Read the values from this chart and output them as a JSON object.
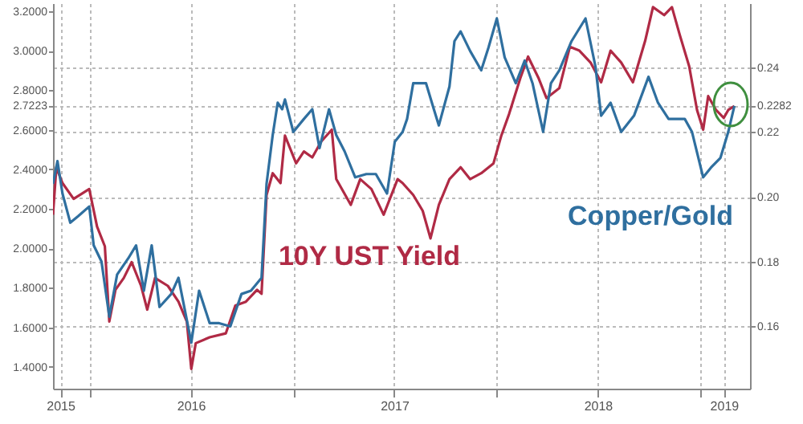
{
  "chart_data": {
    "type": "line",
    "grid": true,
    "xlim": [
      "2015-10-28",
      "2019-03-31"
    ],
    "xticks": [
      {
        "value": "2015-11-10",
        "label": "2015"
      },
      {
        "value": "2016-01-01",
        "label": null
      },
      {
        "value": "2016-07-01",
        "label": "2016"
      },
      {
        "value": "2017-01-01",
        "label": null
      },
      {
        "value": "2017-07-01",
        "label": "2017"
      },
      {
        "value": "2018-01-01",
        "label": null
      },
      {
        "value": "2018-07-01",
        "label": "2018"
      },
      {
        "value": "2019-01-01",
        "label": null
      },
      {
        "value": "2019-02-12",
        "label": "2019"
      }
    ],
    "ylim": [
      1.29,
      3.24
    ],
    "yticks": [
      {
        "value": 1.4,
        "label": "1.4000"
      },
      {
        "value": 1.6,
        "label": "1.6000"
      },
      {
        "value": 1.8,
        "label": "1.8000"
      },
      {
        "value": 2.0,
        "label": "2.0000"
      },
      {
        "value": 2.2,
        "label": "2.2000"
      },
      {
        "value": 2.4,
        "label": "2.4000"
      },
      {
        "value": 2.6,
        "label": "2.6000"
      },
      {
        "value": 2.7223,
        "label": "2.7223"
      },
      {
        "value": 2.8,
        "label": "2.8000"
      },
      {
        "value": 3.0,
        "label": "3.0000"
      },
      {
        "value": 3.2,
        "label": "3.2000"
      }
    ],
    "y2lim": [
      0.1408,
      0.2597
    ],
    "y2ticks": [
      {
        "value": 0.16,
        "label": "0.16"
      },
      {
        "value": 0.18,
        "label": "0.18"
      },
      {
        "value": 0.2,
        "label": "0.20"
      },
      {
        "value": 0.22,
        "label": "0.22"
      },
      {
        "value": 0.2282,
        "label": "0.2282"
      },
      {
        "value": 0.24,
        "label": "0.24"
      }
    ],
    "series": [
      {
        "name": "10Y UST Yield",
        "color": "#b02a45",
        "x": [
          "2015-10-28",
          "2015-11-03",
          "2015-11-14",
          "2015-12-04",
          "2016-01-01",
          "2016-01-15",
          "2016-01-29",
          "2016-02-06",
          "2016-02-17",
          "2016-03-03",
          "2016-03-17",
          "2016-04-03",
          "2016-04-14",
          "2016-04-28",
          "2016-05-21",
          "2016-06-09",
          "2016-06-24",
          "2016-07-02",
          "2016-07-10",
          "2016-08-04",
          "2016-09-02",
          "2016-09-19",
          "2016-10-08",
          "2016-10-28",
          "2016-11-05",
          "2016-11-14",
          "2016-11-25",
          "2016-12-09",
          "2016-12-17",
          "2017-01-06",
          "2017-01-20",
          "2017-02-04",
          "2017-02-20",
          "2017-03-11",
          "2017-03-19",
          "2017-04-14",
          "2017-05-01",
          "2017-05-21",
          "2017-06-12",
          "2017-07-07",
          "2017-07-16",
          "2017-08-04",
          "2017-08-21",
          "2017-09-04",
          "2017-09-19",
          "2017-10-08",
          "2017-10-28",
          "2017-11-14",
          "2017-12-04",
          "2017-12-26",
          "2018-01-09",
          "2018-01-23",
          "2018-02-12",
          "2018-02-26",
          "2018-03-17",
          "2018-03-31",
          "2018-04-23",
          "2018-05-12",
          "2018-05-29",
          "2018-06-18",
          "2018-07-07",
          "2018-07-24",
          "2018-08-12",
          "2018-09-02",
          "2018-09-24",
          "2018-10-08",
          "2018-10-28",
          "2018-11-11",
          "2018-11-25",
          "2018-12-12",
          "2018-12-26",
          "2019-01-06",
          "2019-01-15",
          "2019-01-29",
          "2019-02-12",
          "2019-02-20",
          "2019-03-03"
        ],
        "values": [
          2.17,
          2.41,
          2.33,
          2.25,
          2.3,
          2.11,
          2.01,
          1.63,
          1.79,
          1.85,
          1.93,
          1.81,
          1.69,
          1.85,
          1.81,
          1.73,
          1.63,
          1.39,
          1.52,
          1.55,
          1.57,
          1.71,
          1.73,
          1.79,
          1.77,
          2.27,
          2.38,
          2.33,
          2.57,
          2.43,
          2.49,
          2.46,
          2.54,
          2.6,
          2.35,
          2.22,
          2.35,
          2.3,
          2.17,
          2.35,
          2.33,
          2.27,
          2.19,
          2.05,
          2.22,
          2.35,
          2.41,
          2.35,
          2.38,
          2.43,
          2.57,
          2.68,
          2.86,
          2.97,
          2.86,
          2.76,
          2.81,
          3.02,
          3.0,
          2.94,
          2.84,
          3.0,
          2.94,
          2.84,
          3.05,
          3.22,
          3.18,
          3.22,
          3.08,
          2.92,
          2.7,
          2.6,
          2.77,
          2.7,
          2.66,
          2.7,
          2.72
        ]
      },
      {
        "name": "Copper/Gold",
        "color": "#2f6f9f",
        "axis": "y2",
        "x": [
          "2015-10-28",
          "2015-11-05",
          "2015-11-14",
          "2015-11-28",
          "2015-12-12",
          "2016-01-01",
          "2016-01-09",
          "2016-01-23",
          "2016-02-06",
          "2016-02-20",
          "2016-03-11",
          "2016-03-25",
          "2016-04-08",
          "2016-04-22",
          "2016-05-06",
          "2016-05-27",
          "2016-06-09",
          "2016-07-02",
          "2016-07-16",
          "2016-08-04",
          "2016-08-21",
          "2016-09-10",
          "2016-09-30",
          "2016-10-17",
          "2016-11-05",
          "2016-11-14",
          "2016-11-25",
          "2016-12-04",
          "2016-12-12",
          "2016-12-17",
          "2017-01-01",
          "2017-01-20",
          "2017-02-04",
          "2017-02-17",
          "2017-03-06",
          "2017-03-19",
          "2017-04-03",
          "2017-04-22",
          "2017-05-12",
          "2017-05-29",
          "2017-06-18",
          "2017-07-02",
          "2017-07-16",
          "2017-07-24",
          "2017-08-04",
          "2017-08-27",
          "2017-09-10",
          "2017-09-19",
          "2017-10-08",
          "2017-10-17",
          "2017-10-28",
          "2017-11-14",
          "2017-12-04",
          "2017-12-17",
          "2018-01-01",
          "2018-01-15",
          "2018-02-04",
          "2018-02-20",
          "2018-03-06",
          "2018-03-25",
          "2018-04-08",
          "2018-04-23",
          "2018-05-15",
          "2018-06-09",
          "2018-06-27",
          "2018-07-07",
          "2018-07-24",
          "2018-08-12",
          "2018-09-04",
          "2018-09-30",
          "2018-10-17",
          "2018-11-05",
          "2018-12-04",
          "2018-12-17",
          "2019-01-06",
          "2019-01-20",
          "2019-02-06",
          "2019-02-20",
          "2019-03-03"
        ],
        "values": [
          0.204,
          0.211,
          0.201,
          0.192,
          0.194,
          0.197,
          0.185,
          0.18,
          0.163,
          0.176,
          0.181,
          0.185,
          0.171,
          0.185,
          0.166,
          0.17,
          0.175,
          0.155,
          0.171,
          0.161,
          0.161,
          0.16,
          0.17,
          0.171,
          0.175,
          0.204,
          0.219,
          0.229,
          0.227,
          0.23,
          0.22,
          0.224,
          0.227,
          0.215,
          0.227,
          0.219,
          0.214,
          0.206,
          0.207,
          0.207,
          0.201,
          0.217,
          0.22,
          0.224,
          0.235,
          0.235,
          0.227,
          0.222,
          0.234,
          0.248,
          0.251,
          0.245,
          0.239,
          0.246,
          0.255,
          0.243,
          0.235,
          0.242,
          0.235,
          0.22,
          0.235,
          0.239,
          0.248,
          0.255,
          0.24,
          0.225,
          0.229,
          0.22,
          0.225,
          0.237,
          0.229,
          0.224,
          0.224,
          0.22,
          0.206,
          0.209,
          0.212,
          0.22,
          0.228
        ]
      }
    ]
  }
}
